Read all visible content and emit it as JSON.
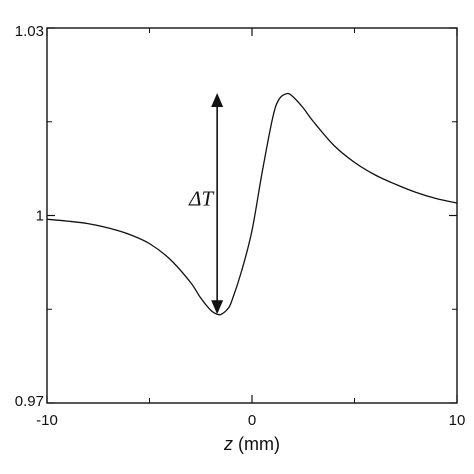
{
  "chart_data": {
    "type": "line",
    "title": "",
    "xlabel": "",
    "xlabel_var": "z",
    "xlabel_unit": " (mm)",
    "ylabel": "",
    "xlim": [
      -10,
      10
    ],
    "ylim": [
      0.97,
      1.03
    ],
    "xticks": [
      -10,
      0,
      10
    ],
    "xtick_labels": [
      "-10",
      "0",
      "10"
    ],
    "yticks": [
      0.97,
      1,
      1.03
    ],
    "ytick_labels": [
      "0.97",
      "1",
      "1.03"
    ],
    "grid": false,
    "legend": "none",
    "series": [
      {
        "x": [
          -10,
          -9,
          -8,
          -7,
          -6,
          -5,
          -4,
          -3,
          -2.5,
          -2,
          -1.7,
          -1.5,
          -1.2,
          -1,
          -0.5,
          0,
          0.5,
          1,
          1.3,
          1.7,
          2,
          2.5,
          3,
          4,
          5,
          6,
          7,
          8,
          9,
          10
        ],
        "y": [
          0.9994,
          0.9991,
          0.9987,
          0.998,
          0.997,
          0.9955,
          0.993,
          0.9893,
          0.9868,
          0.9848,
          0.9842,
          0.9842,
          0.985,
          0.9862,
          0.9912,
          0.9976,
          1.007,
          1.0155,
          1.0185,
          1.0195,
          1.019,
          1.0172,
          1.015,
          1.0112,
          1.0085,
          1.0065,
          1.005,
          1.0037,
          1.0027,
          1.002
        ]
      }
    ],
    "annotation": {
      "label": "ΔT",
      "arrow_from_y": 1.0196,
      "arrow_to_y": 0.9842,
      "arrow_x": -1.7
    }
  }
}
